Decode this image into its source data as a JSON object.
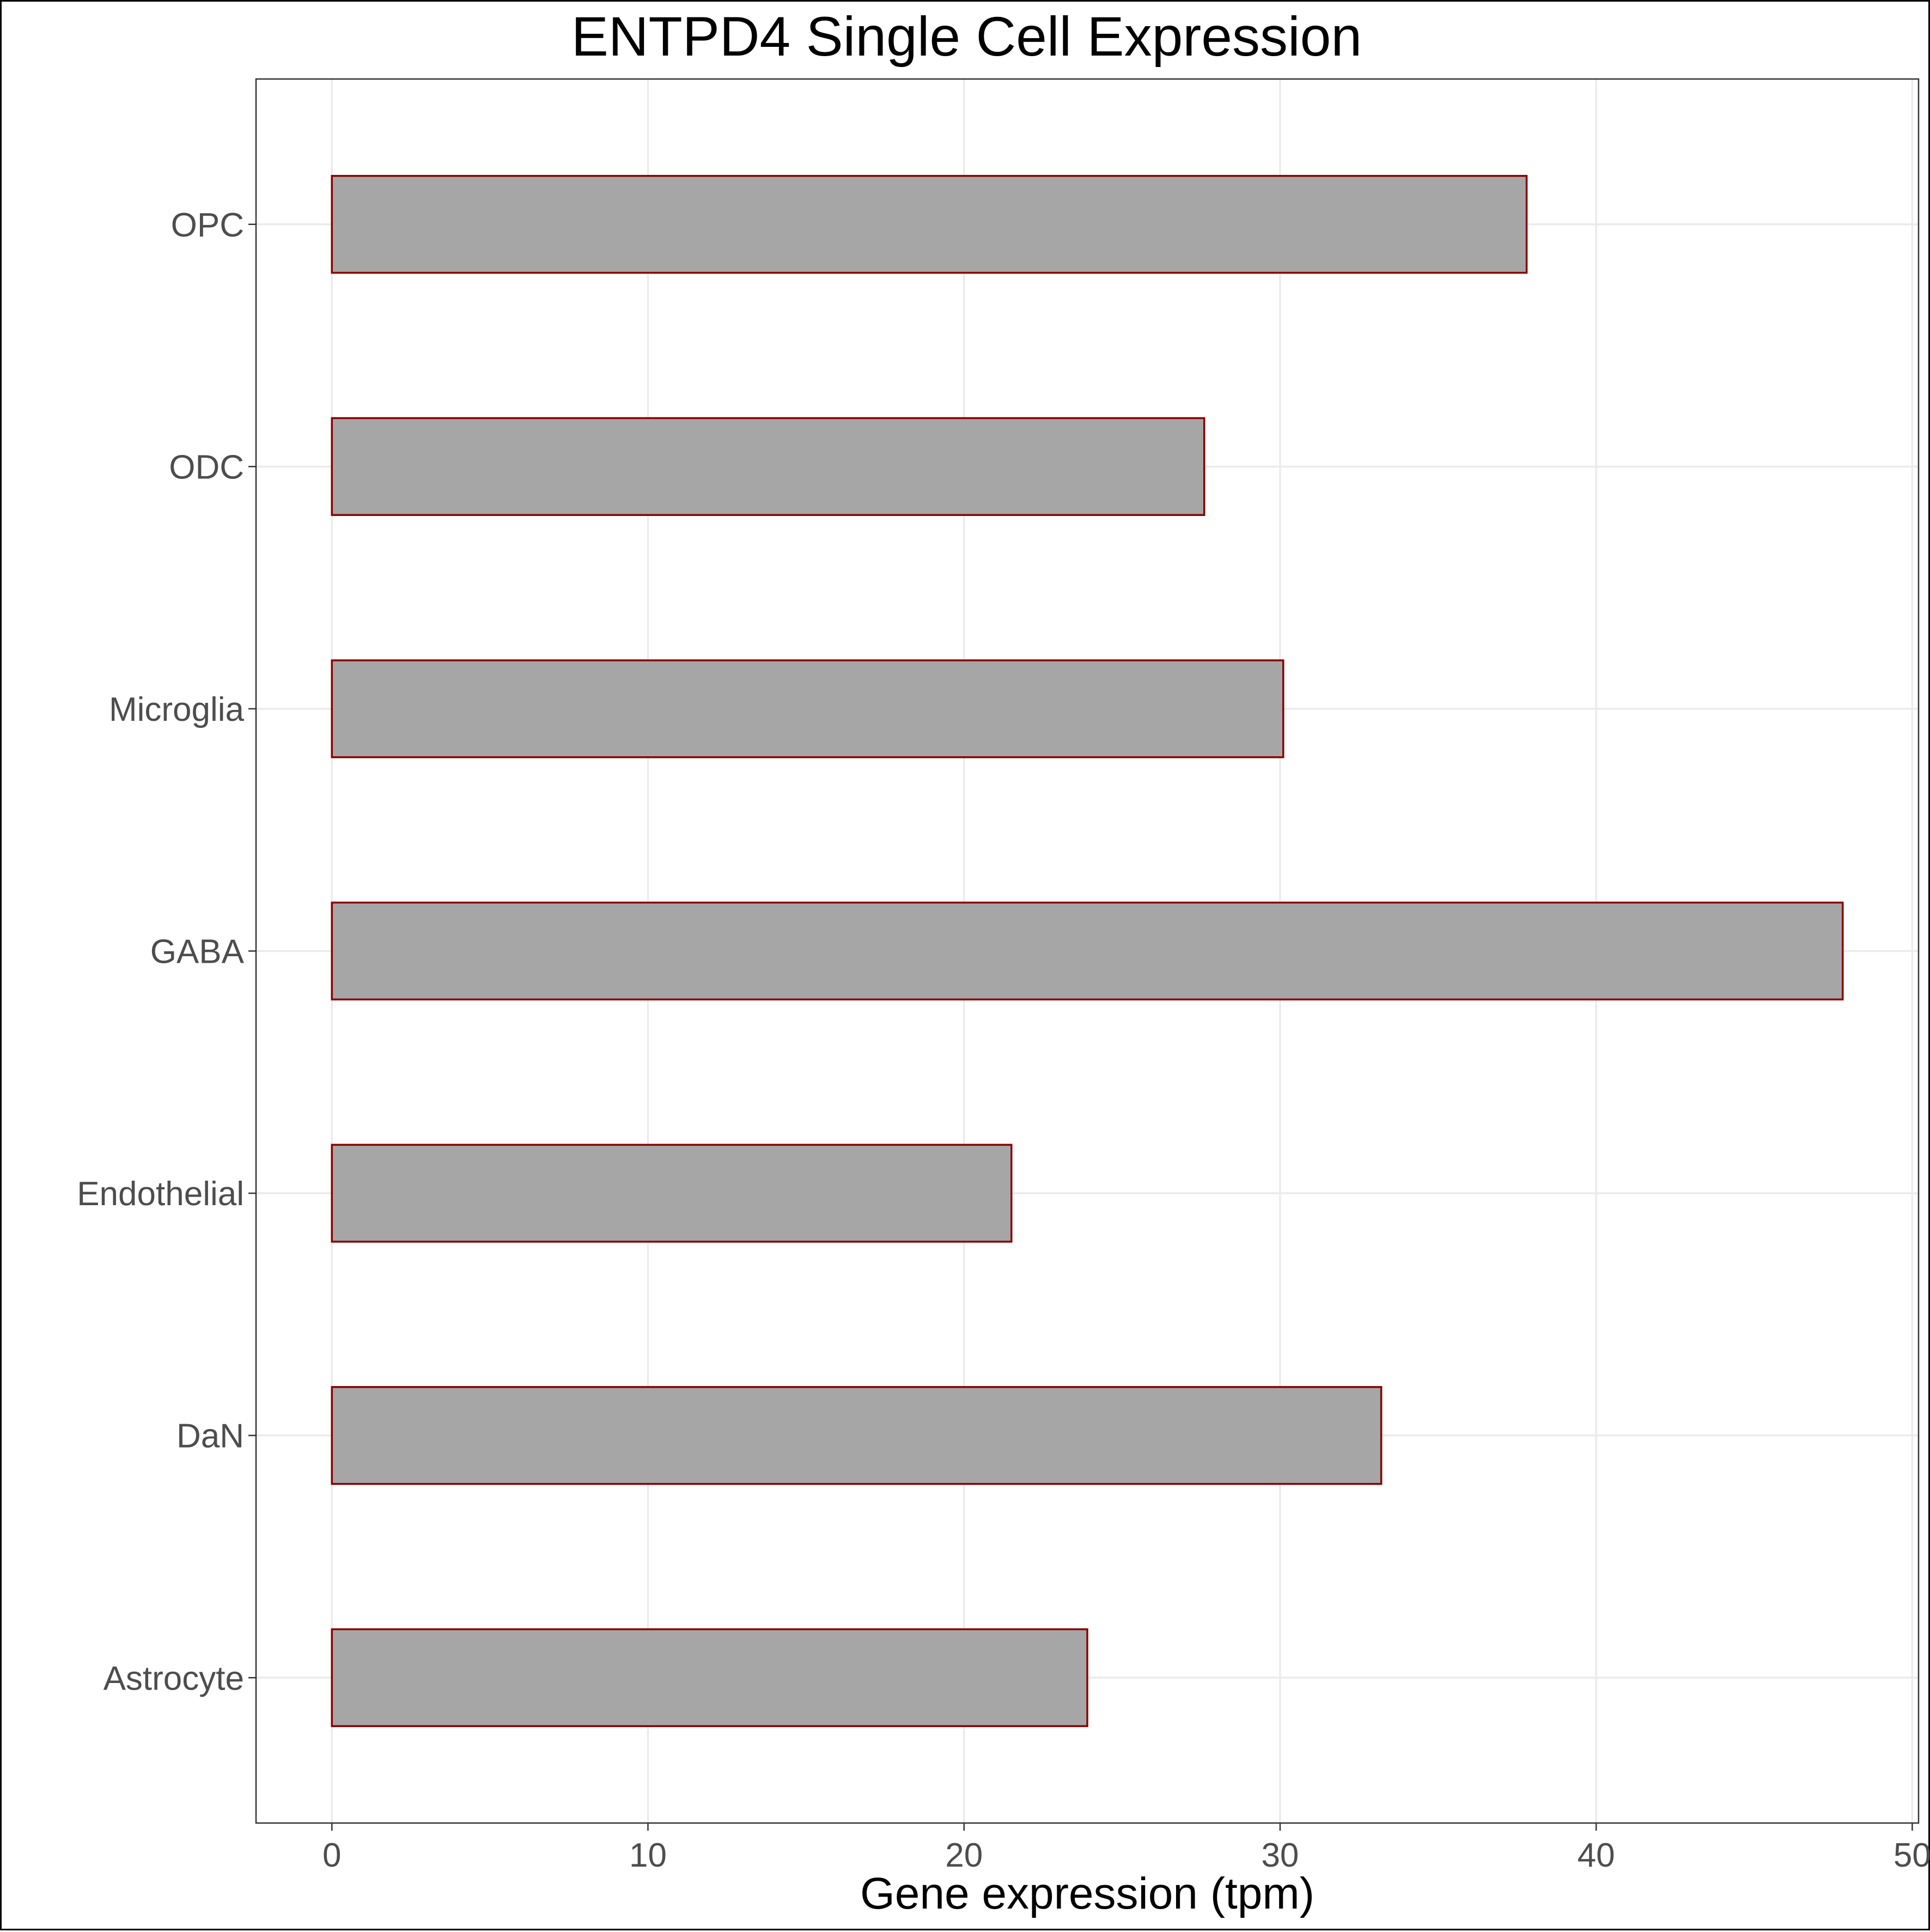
{
  "chart_data": {
    "type": "bar",
    "orientation": "horizontal",
    "title": "ENTPD4 Single Cell Expression",
    "xlabel": "Gene expression (tpm)",
    "ylabel": "",
    "categories": [
      "Astrocyte",
      "DaN",
      "Endothelial",
      "GABA",
      "Microglia",
      "ODC",
      "OPC"
    ],
    "values": [
      23.9,
      33.2,
      21.5,
      47.8,
      30.1,
      27.6,
      37.8
    ],
    "xlim": [
      -2.4,
      50.2
    ],
    "xticks": [
      0,
      10,
      20,
      30,
      40,
      50
    ],
    "grid": true,
    "legend": "none",
    "colors": {
      "bar_fill": "#a6a6a6",
      "bar_outline": "#8b0000",
      "grid": "#ebebeb",
      "panel_border": "#333333",
      "tick_label": "#4d4d4d"
    }
  }
}
